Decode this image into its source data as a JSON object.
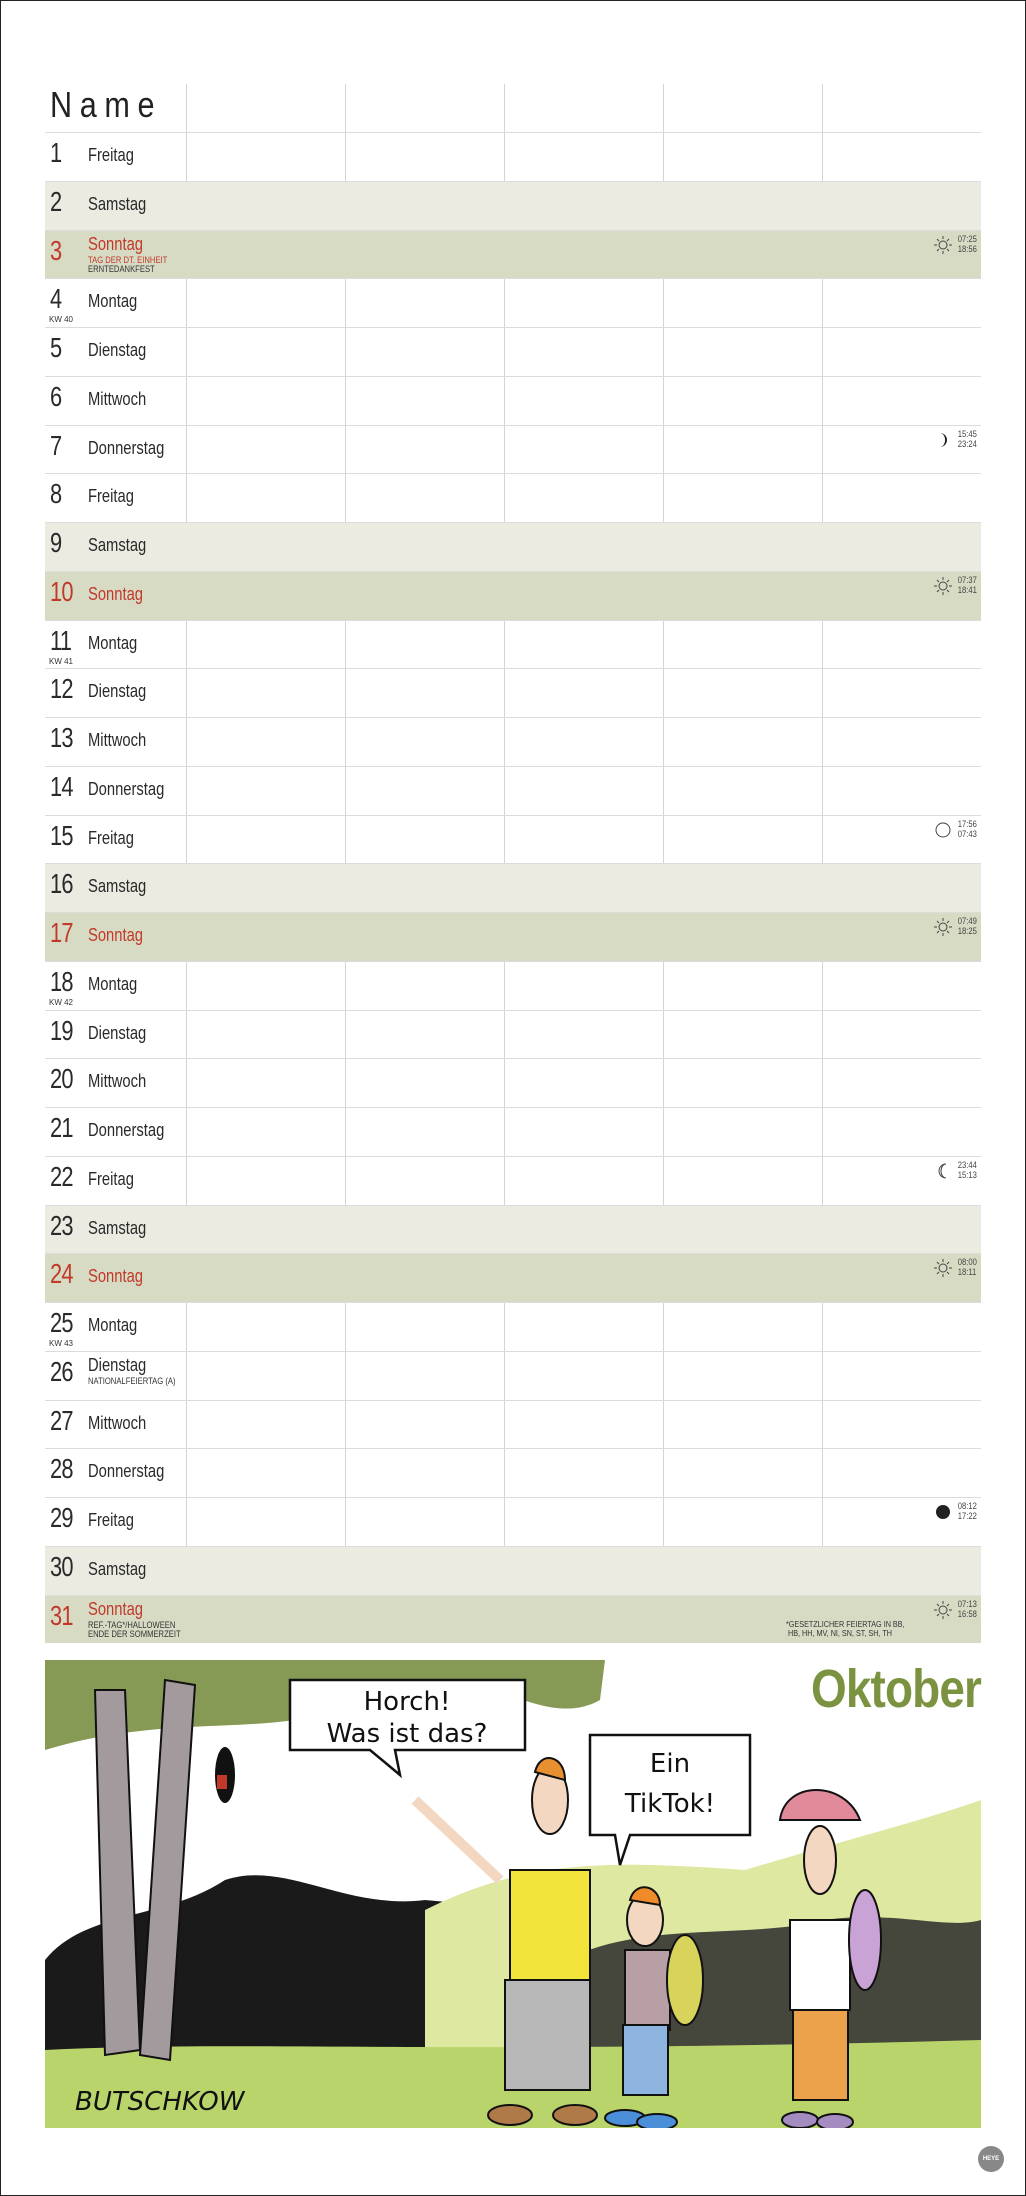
{
  "header": {
    "name_label": "Name"
  },
  "month": "Oktober",
  "colors": {
    "sunday_red": "#c0392b",
    "saturday_bg": "#ebebe2",
    "sunday_bg": "#d8dbc4",
    "month_green": "#7b9340"
  },
  "days": [
    {
      "n": "1",
      "day": "Freitag"
    },
    {
      "n": "2",
      "day": "Samstag",
      "type": "sat"
    },
    {
      "n": "3",
      "day": "Sonntag",
      "type": "sun",
      "notes": [
        {
          "text": "TAG DER DT. EINHEIT",
          "red": true
        },
        {
          "text": "ERNTEDANKFEST"
        }
      ],
      "astro": {
        "icon": "sun-icon",
        "times": [
          "07:25",
          "18:56"
        ]
      }
    },
    {
      "n": "4",
      "day": "Montag",
      "kw": "KW 40"
    },
    {
      "n": "5",
      "day": "Dienstag"
    },
    {
      "n": "6",
      "day": "Mittwoch"
    },
    {
      "n": "7",
      "day": "Donnerstag",
      "astro": {
        "icon": "first-quarter-moon-icon",
        "times": [
          "15:45",
          "23:24"
        ]
      }
    },
    {
      "n": "8",
      "day": "Freitag"
    },
    {
      "n": "9",
      "day": "Samstag",
      "type": "sat"
    },
    {
      "n": "10",
      "day": "Sonntag",
      "type": "sun",
      "astro": {
        "icon": "sun-icon",
        "times": [
          "07:37",
          "18:41"
        ]
      }
    },
    {
      "n": "11",
      "day": "Montag",
      "kw": "KW 41"
    },
    {
      "n": "12",
      "day": "Dienstag"
    },
    {
      "n": "13",
      "day": "Mittwoch"
    },
    {
      "n": "14",
      "day": "Donnerstag"
    },
    {
      "n": "15",
      "day": "Freitag",
      "astro": {
        "icon": "full-moon-icon",
        "times": [
          "17:56",
          "07:43"
        ]
      }
    },
    {
      "n": "16",
      "day": "Samstag",
      "type": "sat"
    },
    {
      "n": "17",
      "day": "Sonntag",
      "type": "sun",
      "astro": {
        "icon": "sun-icon",
        "times": [
          "07:49",
          "18:25"
        ]
      }
    },
    {
      "n": "18",
      "day": "Montag",
      "kw": "KW 42"
    },
    {
      "n": "19",
      "day": "Dienstag"
    },
    {
      "n": "20",
      "day": "Mittwoch"
    },
    {
      "n": "21",
      "day": "Donnerstag"
    },
    {
      "n": "22",
      "day": "Freitag",
      "astro": {
        "icon": "last-quarter-moon-icon",
        "times": [
          "23:44",
          "15:13"
        ]
      }
    },
    {
      "n": "23",
      "day": "Samstag",
      "type": "sat"
    },
    {
      "n": "24",
      "day": "Sonntag",
      "type": "sun",
      "astro": {
        "icon": "sun-icon",
        "times": [
          "08:00",
          "18:11"
        ]
      }
    },
    {
      "n": "25",
      "day": "Montag",
      "kw": "KW 43"
    },
    {
      "n": "26",
      "day": "Dienstag",
      "notes": [
        {
          "text": "NATIONALFEIERTAG (A)"
        }
      ]
    },
    {
      "n": "27",
      "day": "Mittwoch"
    },
    {
      "n": "28",
      "day": "Donnerstag"
    },
    {
      "n": "29",
      "day": "Freitag",
      "astro": {
        "icon": "new-moon-icon",
        "times": [
          "08:12",
          "17:22"
        ]
      }
    },
    {
      "n": "30",
      "day": "Samstag",
      "type": "sat"
    },
    {
      "n": "31",
      "day": "Sonntag",
      "type": "sun",
      "notes": [
        {
          "text": "REF.-TAG*/HALLOWEEN"
        },
        {
          "text": "ENDE DER SOMMERZEIT"
        }
      ],
      "astro": {
        "icon": "sun-icon",
        "times": [
          "07:13",
          "16:58"
        ]
      }
    }
  ],
  "footnote": "*GESETZLICHER FEIERTAG IN BB,\n HB, HH, MV, NI, SN, ST, SH, TH",
  "cartoon": {
    "bubble1": [
      "Horch!",
      "Was ist das?"
    ],
    "bubble2": [
      "Ein",
      "TikTok!"
    ],
    "signature": "BUTSCHKOW"
  },
  "logo": "HEYE"
}
